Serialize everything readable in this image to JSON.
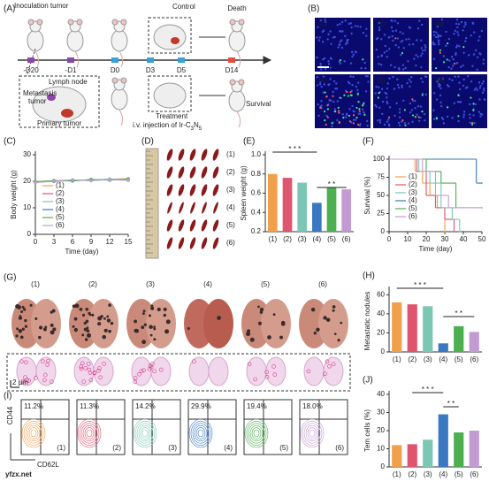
{
  "figure": {
    "panel_labels": [
      "(A)",
      "(B)",
      "(C)",
      "(D)",
      "(E)",
      "(F)",
      "(G)",
      "(H)",
      "(I)",
      "(J)"
    ],
    "schematic": {
      "inoculation": "Inoculation tumor",
      "control": "Control",
      "death": "Death",
      "metastasis": "Metastasis",
      "metastasis_2": "tumor",
      "lymph": "Lymph node",
      "primary": "Primary tumor",
      "treatment": "Treatment",
      "injection": "i.v. injection of Ir-C",
      "injection_sub": "3",
      "injection_n": "N",
      "injection_sub2": "5",
      "survival": "Survival",
      "timeline": [
        "-D20",
        "-D1",
        "D0",
        "D3",
        "D5",
        "D14"
      ]
    },
    "fluorescence_labels": [
      "(1)",
      "(2)",
      "(3)",
      "(4)",
      "(5)",
      "(6)"
    ],
    "spleen_labels": [
      "(1)",
      "(2)",
      "(3)",
      "(4)",
      "(5)",
      "(6)"
    ],
    "lung_labels": [
      "(1)",
      "(2)",
      "(3)",
      "(4)",
      "(5)",
      "(6)"
    ],
    "scale_bar": "2 μm",
    "flow": {
      "percentages": [
        "11.2%",
        "11.3%",
        "14.2%",
        "29.9%",
        "19.4%",
        "18.0%"
      ],
      "labels": [
        "(1)",
        "(2)",
        "(3)",
        "(4)",
        "(5)",
        "(6)"
      ],
      "y_label": "CD44",
      "x_label": "CD62L"
    },
    "watermark": "yfzx.net"
  },
  "chart_data": [
    {
      "type": "line",
      "x_label": "Time (day)",
      "y_label": "Body weight (g)",
      "x": [
        0,
        3,
        6,
        9,
        12,
        15
      ],
      "xlim": [
        0,
        15
      ],
      "xticks": [
        0,
        3,
        6,
        9,
        12,
        15
      ],
      "ylim": [
        0,
        30
      ],
      "yticks": [
        0,
        10,
        20,
        30
      ],
      "legend": "lower left",
      "series": [
        {
          "name": "(1)",
          "color": "#f0a04b",
          "values": [
            19.8,
            20.2,
            20.5,
            20.4,
            20.8,
            21.0
          ]
        },
        {
          "name": "(2)",
          "color": "#e0556e",
          "values": [
            19.6,
            20.0,
            20.3,
            20.6,
            20.5,
            20.7
          ]
        },
        {
          "name": "(3)",
          "color": "#7cc6b4",
          "values": [
            19.9,
            20.1,
            20.2,
            20.5,
            20.9,
            20.6
          ]
        },
        {
          "name": "(4)",
          "color": "#3b78c2",
          "values": [
            19.7,
            19.9,
            20.4,
            20.3,
            20.6,
            20.4
          ]
        },
        {
          "name": "(5)",
          "color": "#4caf50",
          "values": [
            19.8,
            20.3,
            20.1,
            20.7,
            20.4,
            20.9
          ]
        },
        {
          "name": "(6)",
          "color": "#c39bd3",
          "values": [
            19.5,
            20.0,
            20.6,
            20.2,
            20.7,
            20.5
          ]
        }
      ]
    },
    {
      "type": "bar",
      "y_label": "Spleen weight (g)",
      "categories": [
        "(1)",
        "(2)",
        "(3)",
        "(4)",
        "(5)",
        "(6)"
      ],
      "values": [
        0.8,
        0.76,
        0.71,
        0.5,
        0.66,
        0.64
      ],
      "colors": [
        "#f0a04b",
        "#e0556e",
        "#7cc6b4",
        "#3b78c2",
        "#4caf50",
        "#c39bd3"
      ],
      "ylim": [
        0.2,
        1.0
      ],
      "yticks": [
        0.2,
        0.4,
        0.6,
        0.8,
        {
          "value": 1,
          "label": "1.0"
        }
      ],
      "annotations": [
        "* * *",
        "* *"
      ]
    },
    {
      "type": "step",
      "x_label": "Time (day)",
      "y_label": "Survival (%)",
      "xlim": [
        0,
        50
      ],
      "xticks": [
        0,
        10,
        20,
        30,
        40,
        50
      ],
      "ylim": [
        0,
        100
      ],
      "yticks": [
        0,
        25,
        50,
        75,
        100
      ],
      "legend": "lower left",
      "series": [
        {
          "name": "(1)",
          "color": "#f0a04b",
          "x": [
            0,
            14,
            18,
            22,
            26,
            30
          ],
          "values": [
            100,
            83,
            67,
            50,
            33,
            0
          ]
        },
        {
          "name": "(2)",
          "color": "#e0556e",
          "x": [
            0,
            15,
            20,
            25,
            30,
            35
          ],
          "values": [
            100,
            83,
            50,
            33,
            17,
            0
          ]
        },
        {
          "name": "(3)",
          "color": "#7cc6b4",
          "x": [
            0,
            16,
            22,
            28,
            34,
            38
          ],
          "values": [
            100,
            83,
            67,
            33,
            17,
            0
          ]
        },
        {
          "name": "(4)",
          "color": "#3b78c2",
          "x": [
            0,
            47,
            50
          ],
          "values": [
            100,
            67,
            67
          ]
        },
        {
          "name": "(5)",
          "color": "#4caf50",
          "x": [
            0,
            20,
            28,
            36,
            45,
            50
          ],
          "values": [
            100,
            83,
            67,
            33,
            33,
            33
          ]
        },
        {
          "name": "(6)",
          "color": "#c39bd3",
          "x": [
            0,
            18,
            25,
            32,
            40,
            50
          ],
          "values": [
            100,
            83,
            50,
            33,
            33,
            33
          ]
        }
      ]
    },
    {
      "type": "bar",
      "y_label": "Metastatic nodules",
      "categories": [
        "(1)",
        "(2)",
        "(3)",
        "(4)",
        "(5)",
        "(6)"
      ],
      "values": [
        52,
        50,
        48,
        9,
        27,
        21
      ],
      "colors": [
        "#f0a04b",
        "#e0556e",
        "#7cc6b4",
        "#3b78c2",
        "#4caf50",
        "#c39bd3"
      ],
      "ylim": [
        0,
        65
      ],
      "yticks": [
        0,
        20,
        40,
        60
      ],
      "annotations": [
        "* * *",
        "* *"
      ]
    },
    {
      "type": "bar",
      "y_label": "Tem cells (%)",
      "categories": [
        "(1)",
        "(2)",
        "(3)",
        "(4)",
        "(5)",
        "(6)"
      ],
      "values": [
        12,
        12.5,
        15,
        29,
        19,
        20
      ],
      "colors": [
        "#f0a04b",
        "#e0556e",
        "#7cc6b4",
        "#3b78c2",
        "#4caf50",
        "#c39bd3"
      ],
      "ylim": [
        0,
        40
      ],
      "yticks": [
        0,
        10,
        20,
        30,
        40
      ],
      "annotations": [
        "* * *",
        "* *"
      ]
    }
  ]
}
